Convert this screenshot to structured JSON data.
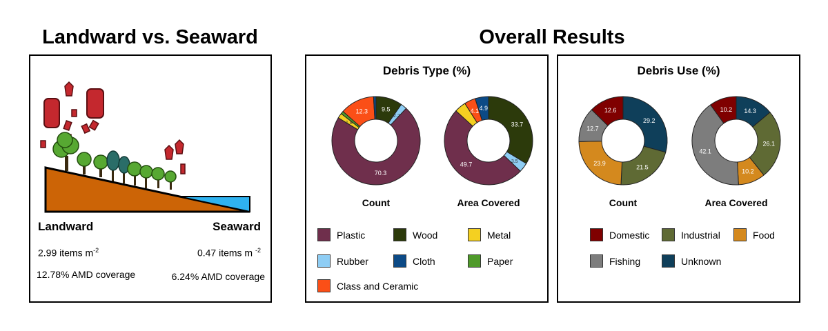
{
  "titles": {
    "left": "Landward vs. Seaward",
    "right": "Overall Results"
  },
  "landward": {
    "label": "Landward",
    "density_prefix": "2.99 items m",
    "density_exp": "-2",
    "coverage": "12.78% AMD coverage"
  },
  "seaward": {
    "label": "Seaward",
    "density_prefix": "0.47 items m",
    "density_exp": "-2",
    "coverage": "6.24% AMD coverage"
  },
  "colors": {
    "Plastic": "#6f2f4c",
    "Wood": "#2c3a0b",
    "Metal": "#f4d021",
    "Rubber": "#8ecdf4",
    "Cloth": "#0c4a86",
    "Paper": "#4f9a2a",
    "Class and Ceramic": "#fb4f17",
    "Domestic": "#7f0000",
    "Industrial": "#5f6a34",
    "Food": "#d4891e",
    "Fishing": "#7d7d7d",
    "Unknown": "#0f3f5a"
  },
  "chart_data": [
    {
      "type": "pie",
      "title": "Debris Type (%)",
      "subtitle": "Count",
      "slices": [
        {
          "label": "Wood",
          "value": 9.5,
          "text": "9.5"
        },
        {
          "label": "Rubber",
          "value": 2.2,
          "text": "2.2"
        },
        {
          "label": "Plastic",
          "value": 70.3,
          "text": "70.3"
        },
        {
          "label": "Metal",
          "value": 1.8,
          "text": "1.8"
        },
        {
          "label": "Paper",
          "value": 1.0,
          "text": ""
        },
        {
          "label": "Class and Ceramic",
          "value": 12.3,
          "text": "12.3"
        },
        {
          "label": "Cloth",
          "value": 0.9,
          "text": ""
        }
      ]
    },
    {
      "type": "pie",
      "title": "Debris Type (%)",
      "subtitle": "Area Covered",
      "slices": [
        {
          "label": "Wood",
          "value": 33.7,
          "text": "33.7"
        },
        {
          "label": "Rubber",
          "value": 3.5,
          "text": "3.5"
        },
        {
          "label": "Plastic",
          "value": 49.7,
          "text": "49.7"
        },
        {
          "label": "Metal",
          "value": 4.2,
          "text": ""
        },
        {
          "label": "Class and Ceramic",
          "value": 4.1,
          "text": "4.1"
        },
        {
          "label": "Cloth",
          "value": 4.9,
          "text": "4.9"
        }
      ]
    },
    {
      "type": "pie",
      "title": "Debris Use (%)",
      "subtitle": "Count",
      "slices": [
        {
          "label": "Unknown",
          "value": 29.2,
          "text": "29.2"
        },
        {
          "label": "Industrial",
          "value": 21.5,
          "text": "21.5"
        },
        {
          "label": "Food",
          "value": 23.9,
          "text": "23.9"
        },
        {
          "label": "Fishing",
          "value": 12.7,
          "text": "12.7"
        },
        {
          "label": "Domestic",
          "value": 12.6,
          "text": "12.6"
        }
      ]
    },
    {
      "type": "pie",
      "title": "Debris Use (%)",
      "subtitle": "Area Covered",
      "slices": [
        {
          "label": "Unknown",
          "value": 14.3,
          "text": "14.3"
        },
        {
          "label": "Industrial",
          "value": 26.1,
          "text": "26.1"
        },
        {
          "label": "Food",
          "value": 10.2,
          "text": "10.2"
        },
        {
          "label": "Fishing",
          "value": 42.1,
          "text": "42.1"
        },
        {
          "label": "Domestic",
          "value": 10.2,
          "text": "10.2"
        }
      ]
    }
  ],
  "legend_type": [
    "Plastic",
    "Wood",
    "Metal",
    "Rubber",
    "Cloth",
    "Paper",
    "Class and Ceramic"
  ],
  "legend_use": [
    "Domestic",
    "Industrial",
    "Food",
    "Fishing",
    "Unknown"
  ]
}
